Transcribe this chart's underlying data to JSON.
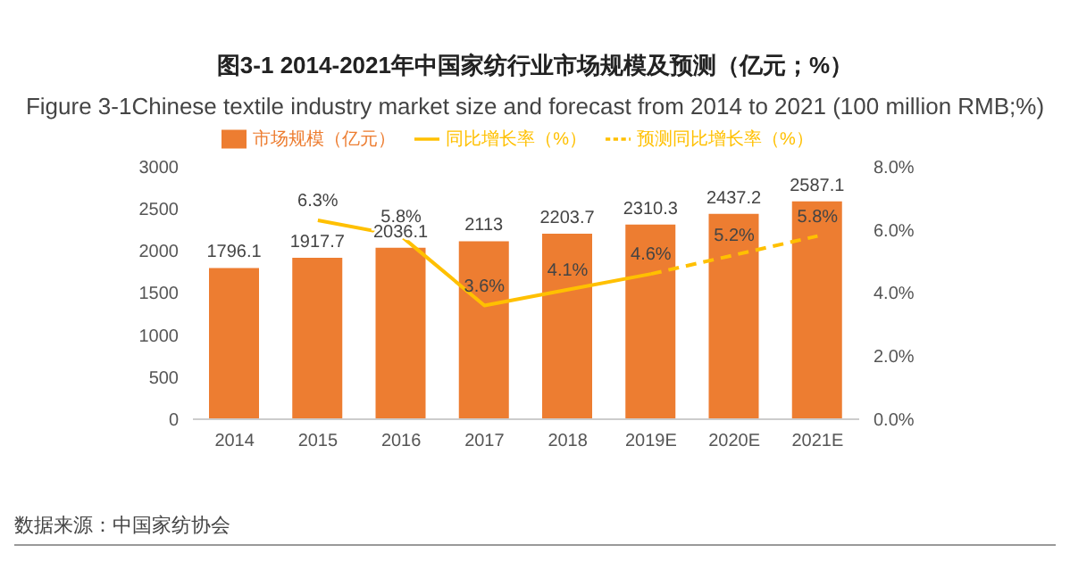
{
  "chart_data": {
    "type": "bar",
    "title": "图3-1 2014-2021年中国家纺行业市场规模及预测（亿元；%）",
    "subtitle": "Figure  3-1Chinese textile industry market size and forecast from 2014 to 2021 (100 million RMB;%)",
    "categories": [
      "2014",
      "2015",
      "2016",
      "2017",
      "2018",
      "2019E",
      "2020E",
      "2021E"
    ],
    "series": [
      {
        "name": "市场规模（亿元）",
        "color": "#ed7d31",
        "values": [
          1796.1,
          1917.7,
          2036.1,
          2113,
          2203.7,
          2310.3,
          2437.2,
          2587.1
        ],
        "value_labels": [
          "1796.1",
          "1917.7",
          "2036.1",
          "2113",
          "2203.7",
          "2310.3",
          "2437.2",
          "2587.1"
        ]
      },
      {
        "name": "同比增长率（%）",
        "type": "line",
        "axis": "y2",
        "color": "#ffc000",
        "line_style": "solid",
        "values": [
          null,
          6.3,
          5.8,
          3.6,
          4.1,
          4.6,
          null,
          null
        ],
        "value_labels": [
          null,
          "6.3%",
          "5.8%",
          "3.6%",
          "4.1%",
          "4.6%",
          null,
          null
        ]
      },
      {
        "name": "预测同比增长率（%）",
        "type": "line",
        "axis": "y2",
        "color": "#ffc000",
        "line_style": "dashed",
        "values": [
          null,
          null,
          null,
          null,
          null,
          4.6,
          5.2,
          5.8
        ],
        "value_labels": [
          null,
          null,
          null,
          null,
          null,
          null,
          "5.2%",
          "5.8%"
        ]
      }
    ],
    "ylim": [
      0,
      3000
    ],
    "yticks": [
      0,
      500,
      1000,
      1500,
      2000,
      2500,
      3000
    ],
    "y2lim": [
      0,
      8
    ],
    "y2ticks": [
      {
        "value": 0,
        "label": "0.0%"
      },
      {
        "value": 2,
        "label": "2.0%"
      },
      {
        "value": 4,
        "label": "4.0%"
      },
      {
        "value": 6,
        "label": "6.0%"
      },
      {
        "value": 8,
        "label": "8.0%"
      }
    ],
    "grid": false,
    "legend": "top",
    "marker": "none",
    "annotations": [
      "数据来源：中国家纺协会"
    ]
  }
}
